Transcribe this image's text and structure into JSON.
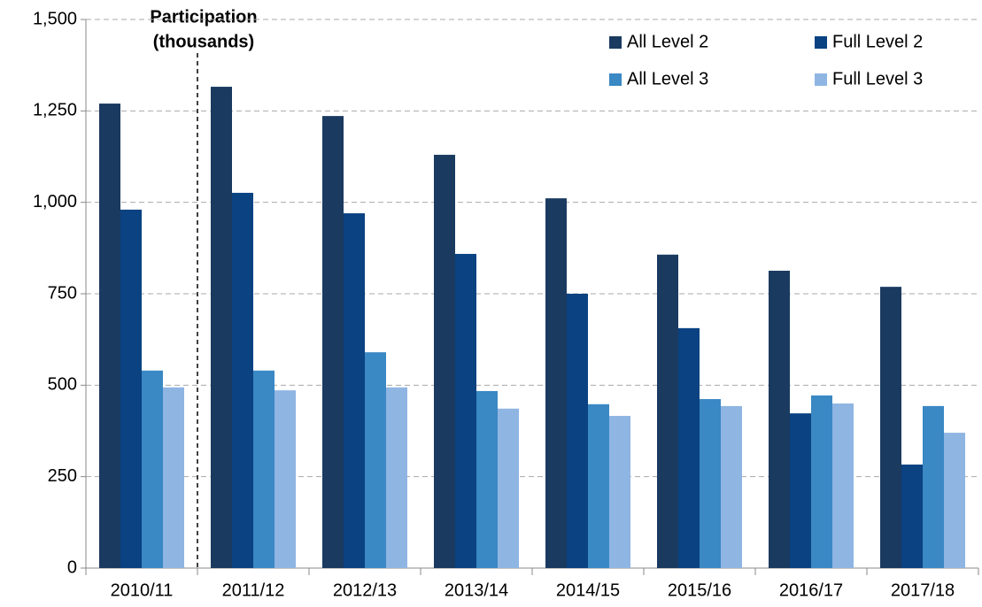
{
  "chart_data": {
    "type": "bar",
    "annotation": [
      "Participation",
      "(thousands)"
    ],
    "categories": [
      "2010/11",
      "2011/12",
      "2012/13",
      "2013/14",
      "2014/15",
      "2015/16",
      "2016/17",
      "2017/18"
    ],
    "series": [
      {
        "name": "All Level 2",
        "color": "#1a3a60",
        "values": [
          1270,
          1316,
          1236,
          1130,
          1011,
          857,
          813,
          769
        ]
      },
      {
        "name": "Full Level 2",
        "color": "#0a4282",
        "values": [
          980,
          1026,
          970,
          859,
          750,
          656,
          423,
          283
        ]
      },
      {
        "name": "All Level 3",
        "color": "#3a88c4",
        "values": [
          540,
          540,
          590,
          484,
          448,
          462,
          472,
          443
        ]
      },
      {
        "name": "Full Level 3",
        "color": "#8fb5e3",
        "values": [
          494,
          486,
          494,
          436,
          416,
          443,
          450,
          370
        ]
      }
    ],
    "ylim": [
      0,
      1500
    ],
    "yticks": [
      0,
      250,
      500,
      750,
      {
        "value": 1000,
        "label": "1,000"
      },
      {
        "value": 1250,
        "label": "1,250"
      },
      {
        "value": 1500,
        "label": "1,500"
      }
    ],
    "grid": true,
    "legend": "top-right"
  }
}
